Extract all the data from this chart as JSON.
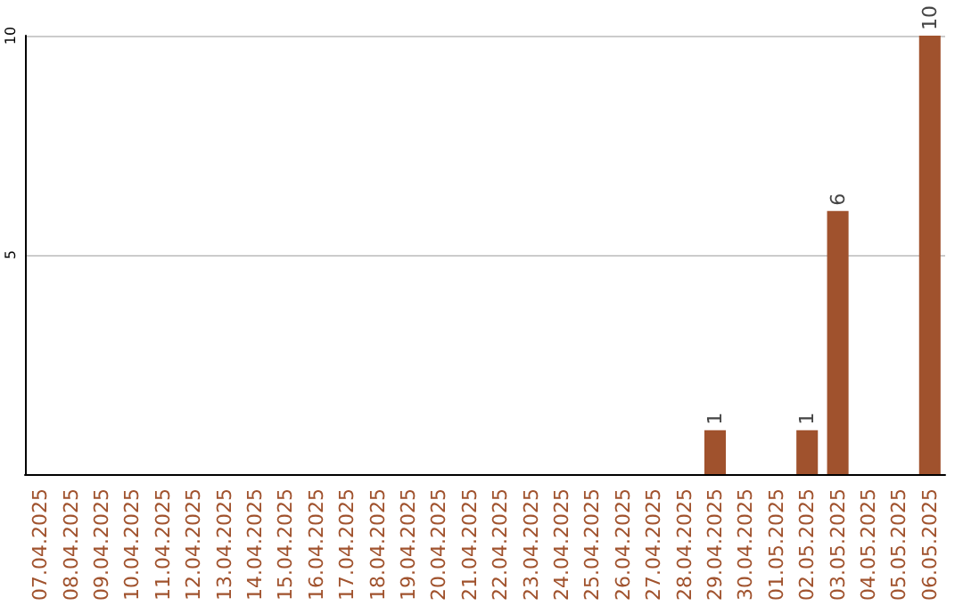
{
  "chart_data": {
    "type": "bar",
    "categories": [
      "07.04.2025",
      "08.04.2025",
      "09.04.2025",
      "10.04.2025",
      "11.04.2025",
      "12.04.2025",
      "13.04.2025",
      "14.04.2025",
      "15.04.2025",
      "16.04.2025",
      "17.04.2025",
      "18.04.2025",
      "19.04.2025",
      "20.04.2025",
      "21.04.2025",
      "22.04.2025",
      "23.04.2025",
      "24.04.2025",
      "25.04.2025",
      "26.04.2025",
      "27.04.2025",
      "28.04.2025",
      "29.04.2025",
      "30.04.2025",
      "01.05.2025",
      "02.05.2025",
      "03.05.2025",
      "04.05.2025",
      "05.05.2025",
      "06.05.2025"
    ],
    "values": [
      0,
      0,
      0,
      0,
      0,
      0,
      0,
      0,
      0,
      0,
      0,
      0,
      0,
      0,
      0,
      0,
      0,
      0,
      0,
      0,
      0,
      0,
      1,
      0,
      0,
      1,
      6,
      0,
      0,
      10
    ],
    "value_labels": [
      null,
      null,
      null,
      null,
      null,
      null,
      null,
      null,
      null,
      null,
      null,
      null,
      null,
      null,
      null,
      null,
      null,
      null,
      null,
      null,
      null,
      null,
      "1",
      null,
      null,
      "1",
      "6",
      null,
      null,
      "10"
    ],
    "color": "#a0522d",
    "ylim": [
      0,
      10
    ],
    "yticks": [
      5,
      10
    ],
    "grid": "y"
  }
}
